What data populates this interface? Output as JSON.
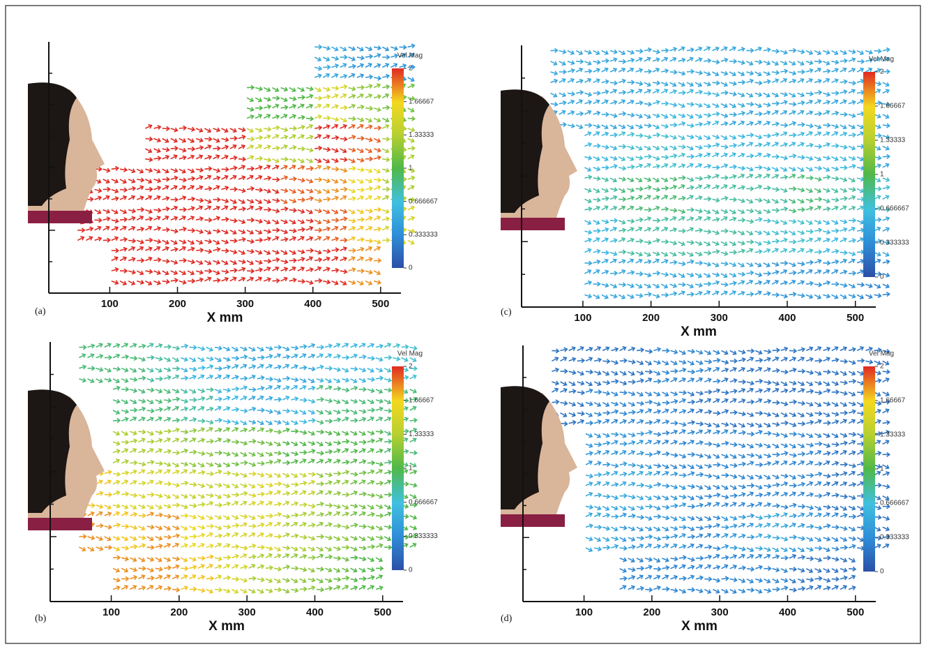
{
  "chart_data": [
    {
      "type": "vector",
      "panel_label": "(a)",
      "xlabel": "X mm",
      "colorbar_label": "Vel Mag",
      "xlim": [
        10,
        530
      ],
      "xticks": [
        100,
        200,
        300,
        400,
        500
      ],
      "x": [
        75,
        125,
        175,
        225,
        275,
        325,
        375,
        425,
        475,
        525
      ],
      "clim": [
        0,
        2
      ],
      "cticks": [
        2,
        1.66667,
        1.33333,
        1,
        0.666667,
        0.333333,
        0
      ],
      "values": [
        [
          null,
          null,
          null,
          null,
          null,
          null,
          null,
          0.5,
          0.4,
          0.4
        ],
        [
          null,
          null,
          null,
          null,
          null,
          1.0,
          1.0,
          1.5,
          1.2,
          1.1
        ],
        [
          null,
          null,
          2,
          2,
          2,
          1.4,
          1.3,
          2,
          1.9,
          1.3
        ],
        [
          2,
          2,
          2,
          2,
          2,
          2,
          1.9,
          1.8,
          1.6,
          1.3
        ],
        [
          2,
          2,
          2,
          2,
          2,
          2,
          2,
          1.9,
          1.7,
          1.5
        ],
        [
          null,
          2,
          2,
          2,
          2,
          2,
          2,
          2,
          1.8,
          null
        ]
      ]
    },
    {
      "type": "vector",
      "panel_label": "(b)",
      "xlabel": "X mm",
      "colorbar_label": "Vel Mag",
      "xlim": [
        10,
        530
      ],
      "xticks": [
        100,
        200,
        300,
        400,
        500
      ],
      "x": [
        75,
        125,
        175,
        225,
        275,
        325,
        375,
        425,
        475,
        525
      ],
      "clim": [
        0,
        2
      ],
      "cticks": [
        2,
        1.66667,
        1.33333,
        1,
        0.666667,
        0.333333,
        0
      ],
      "values": [
        [
          0.9,
          0.9,
          0.8,
          0.6,
          0.5,
          0.5,
          0.5,
          0.6,
          0.6,
          0.7
        ],
        [
          null,
          0.9,
          0.9,
          0.8,
          0.6,
          0.5,
          0.6,
          0.9,
          0.9,
          0.9
        ],
        [
          null,
          1.3,
          1.3,
          1.2,
          1.1,
          1.1,
          1.0,
          1.0,
          1.0,
          0.9
        ],
        [
          1.7,
          1.5,
          1.5,
          1.4,
          1.4,
          1.5,
          1.4,
          1.2,
          1.1,
          1.0
        ],
        [
          1.8,
          1.7,
          1.8,
          1.6,
          1.5,
          1.5,
          1.3,
          1.2,
          1.1,
          1.0
        ],
        [
          null,
          1.8,
          1.8,
          1.7,
          1.5,
          1.3,
          1.2,
          1.1,
          1.0,
          null
        ]
      ]
    },
    {
      "type": "vector",
      "panel_label": "(c)",
      "xlabel": "X mm",
      "colorbar_label": "Vel Mag",
      "xlim": [
        10,
        530
      ],
      "xticks": [
        100,
        200,
        300,
        400,
        500
      ],
      "x": [
        75,
        125,
        175,
        225,
        275,
        325,
        375,
        425,
        475,
        525
      ],
      "clim": [
        0,
        2
      ],
      "cticks": [
        2,
        1.66667,
        1.33333,
        1,
        0.666667,
        0.333333,
        0
      ],
      "values": [
        [
          0.5,
          0.5,
          0.5,
          0.5,
          0.5,
          0.5,
          0.5,
          0.5,
          0.5,
          0.5
        ],
        [
          0.5,
          0.5,
          0.5,
          0.6,
          0.6,
          0.5,
          0.5,
          0.5,
          0.5,
          0.5
        ],
        [
          null,
          0.6,
          0.7,
          0.7,
          0.6,
          0.6,
          0.6,
          0.6,
          0.6,
          0.5
        ],
        [
          null,
          0.8,
          0.9,
          0.9,
          0.8,
          0.8,
          0.8,
          0.9,
          0.8,
          0.7
        ],
        [
          null,
          0.6,
          0.8,
          0.8,
          0.8,
          0.8,
          0.7,
          0.7,
          0.6,
          0.5
        ],
        [
          null,
          0.5,
          0.5,
          0.5,
          0.5,
          0.5,
          0.4,
          0.4,
          0.4,
          0.3
        ]
      ]
    },
    {
      "type": "vector",
      "panel_label": "(d)",
      "xlabel": "X mm",
      "colorbar_label": "Vel Mag",
      "xlim": [
        10,
        530
      ],
      "xticks": [
        100,
        200,
        300,
        400,
        500
      ],
      "x": [
        75,
        125,
        175,
        225,
        275,
        325,
        375,
        425,
        475,
        525
      ],
      "clim": [
        0,
        2
      ],
      "cticks": [
        2,
        1.66667,
        1.33333,
        1,
        0.666667,
        0.333333,
        0
      ],
      "values": [
        [
          0.2,
          0.2,
          0.2,
          0.3,
          0.3,
          0.2,
          0.2,
          0.2,
          0.2,
          0.2
        ],
        [
          0.2,
          0.3,
          0.3,
          0.3,
          0.2,
          0.2,
          0.2,
          0.2,
          0.2,
          0.2
        ],
        [
          null,
          0.4,
          0.4,
          0.3,
          0.3,
          0.3,
          0.3,
          0.3,
          0.2,
          0.2
        ],
        [
          null,
          0.5,
          0.5,
          0.4,
          0.3,
          0.3,
          0.3,
          0.3,
          0.2,
          0.2
        ],
        [
          null,
          0.5,
          0.4,
          0.4,
          0.3,
          0.4,
          0.5,
          0.4,
          0.3,
          0.2
        ],
        [
          null,
          null,
          0.3,
          0.3,
          0.3,
          0.3,
          0.3,
          0.2,
          0.2,
          null
        ]
      ]
    }
  ]
}
